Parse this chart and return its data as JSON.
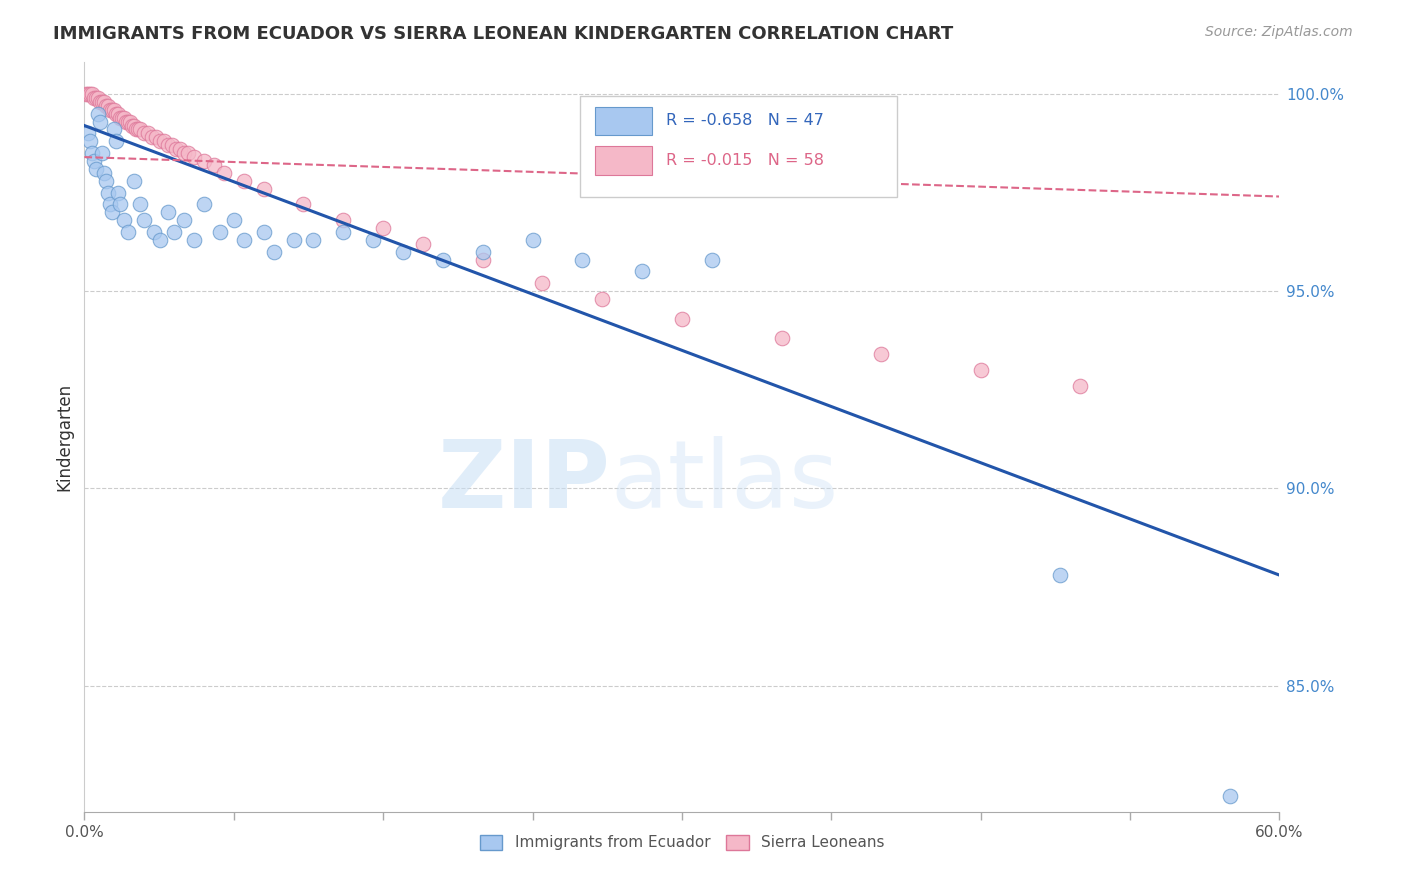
{
  "title": "IMMIGRANTS FROM ECUADOR VS SIERRA LEONEAN KINDERGARTEN CORRELATION CHART",
  "source": "Source: ZipAtlas.com",
  "ylabel": "Kindergarten",
  "xlim": [
    0.0,
    0.6
  ],
  "ylim": [
    0.818,
    1.008
  ],
  "yticks": [
    0.85,
    0.9,
    0.95,
    1.0
  ],
  "ytick_labels": [
    "85.0%",
    "90.0%",
    "95.0%",
    "100.0%"
  ],
  "xtick_positions": [
    0.0,
    0.075,
    0.15,
    0.225,
    0.3,
    0.375,
    0.45,
    0.525,
    0.6
  ],
  "xtick_edge_labels": [
    "0.0%",
    "60.0%"
  ],
  "blue_color": "#a8c8f0",
  "pink_color": "#f5b8c8",
  "blue_edge_color": "#6699cc",
  "pink_edge_color": "#dd7799",
  "blue_line_color": "#2255aa",
  "pink_line_color": "#dd6688",
  "blue_scatter_x": [
    0.002,
    0.003,
    0.004,
    0.005,
    0.006,
    0.007,
    0.008,
    0.009,
    0.01,
    0.011,
    0.012,
    0.013,
    0.014,
    0.015,
    0.016,
    0.017,
    0.018,
    0.02,
    0.022,
    0.025,
    0.028,
    0.03,
    0.035,
    0.038,
    0.042,
    0.045,
    0.05,
    0.055,
    0.06,
    0.068,
    0.075,
    0.08,
    0.09,
    0.095,
    0.105,
    0.115,
    0.13,
    0.145,
    0.16,
    0.18,
    0.2,
    0.225,
    0.25,
    0.28,
    0.315,
    0.49,
    0.575
  ],
  "blue_scatter_y": [
    0.99,
    0.988,
    0.985,
    0.983,
    0.981,
    0.995,
    0.993,
    0.985,
    0.98,
    0.978,
    0.975,
    0.972,
    0.97,
    0.991,
    0.988,
    0.975,
    0.972,
    0.968,
    0.965,
    0.978,
    0.972,
    0.968,
    0.965,
    0.963,
    0.97,
    0.965,
    0.968,
    0.963,
    0.972,
    0.965,
    0.968,
    0.963,
    0.965,
    0.96,
    0.963,
    0.963,
    0.965,
    0.963,
    0.96,
    0.958,
    0.96,
    0.963,
    0.958,
    0.955,
    0.958,
    0.878,
    0.822
  ],
  "pink_scatter_x": [
    0.001,
    0.002,
    0.003,
    0.004,
    0.005,
    0.006,
    0.007,
    0.008,
    0.009,
    0.01,
    0.011,
    0.012,
    0.013,
    0.014,
    0.015,
    0.016,
    0.017,
    0.018,
    0.019,
    0.02,
    0.021,
    0.022,
    0.023,
    0.024,
    0.025,
    0.026,
    0.027,
    0.028,
    0.03,
    0.032,
    0.034,
    0.036,
    0.038,
    0.04,
    0.042,
    0.044,
    0.046,
    0.048,
    0.05,
    0.052,
    0.055,
    0.06,
    0.065,
    0.07,
    0.08,
    0.09,
    0.11,
    0.13,
    0.15,
    0.17,
    0.2,
    0.23,
    0.26,
    0.3,
    0.35,
    0.4,
    0.45,
    0.5
  ],
  "pink_scatter_y": [
    1.0,
    1.0,
    1.0,
    1.0,
    0.999,
    0.999,
    0.999,
    0.998,
    0.998,
    0.998,
    0.997,
    0.997,
    0.996,
    0.996,
    0.996,
    0.995,
    0.995,
    0.994,
    0.994,
    0.994,
    0.993,
    0.993,
    0.993,
    0.992,
    0.992,
    0.991,
    0.991,
    0.991,
    0.99,
    0.99,
    0.989,
    0.989,
    0.988,
    0.988,
    0.987,
    0.987,
    0.986,
    0.986,
    0.985,
    0.985,
    0.984,
    0.983,
    0.982,
    0.98,
    0.978,
    0.976,
    0.972,
    0.968,
    0.966,
    0.962,
    0.958,
    0.952,
    0.948,
    0.943,
    0.938,
    0.934,
    0.93,
    0.926
  ],
  "blue_line_x": [
    0.0,
    0.6
  ],
  "blue_line_y": [
    0.992,
    0.878
  ],
  "pink_line_x": [
    0.0,
    0.6
  ],
  "pink_line_y": [
    0.984,
    0.974
  ],
  "watermark_zip": "ZIP",
  "watermark_atlas": "atlas",
  "legend_blue_r": "R = -0.658",
  "legend_blue_n": "N = 47",
  "legend_pink_r": "R = -0.015",
  "legend_pink_n": "N = 58",
  "legend_blue_label": "Immigrants from Ecuador",
  "legend_pink_label": "Sierra Leoneans"
}
